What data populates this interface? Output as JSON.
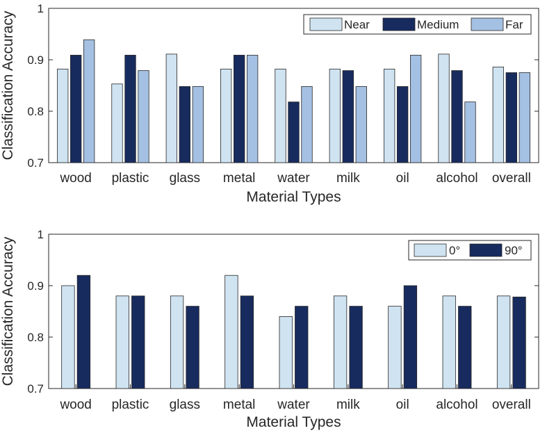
{
  "colors": {
    "near": "#cfe3f1",
    "medium": "#172b5e",
    "far": "#a4c0e2",
    "deg0": "#cfe3f1",
    "deg90": "#172b5e",
    "axis": "#262626",
    "bar_stroke": "#262626"
  },
  "chart_data": [
    {
      "type": "bar",
      "categories": [
        "wood",
        "plastic",
        "glass",
        "metal",
        "water",
        "milk",
        "oil",
        "alcohol",
        "overall"
      ],
      "series": [
        {
          "name": "Near",
          "color_key": "near",
          "values": [
            0.882,
            0.853,
            0.911,
            0.882,
            0.882,
            0.882,
            0.882,
            0.911,
            0.886
          ]
        },
        {
          "name": "Medium",
          "color_key": "medium",
          "values": [
            0.909,
            0.909,
            0.848,
            0.909,
            0.818,
            0.879,
            0.848,
            0.879,
            0.875
          ]
        },
        {
          "name": "Far",
          "color_key": "far",
          "values": [
            0.939,
            0.879,
            0.848,
            0.909,
            0.848,
            0.848,
            0.909,
            0.818,
            0.875
          ]
        }
      ],
      "xlabel": "Material Types",
      "ylabel": "Classification Accuracy",
      "ylim": [
        0.7,
        1
      ],
      "yticks": [
        "0.7",
        "0.8",
        "0.9",
        "1"
      ],
      "grid": false,
      "legend": "top-right, horizontal"
    },
    {
      "type": "bar",
      "categories": [
        "wood",
        "plastic",
        "glass",
        "metal",
        "water",
        "milk",
        "oil",
        "alcohol",
        "overall"
      ],
      "series": [
        {
          "name": "0°",
          "color_key": "deg0",
          "values": [
            0.9,
            0.88,
            0.88,
            0.92,
            0.84,
            0.88,
            0.86,
            0.88,
            0.88
          ]
        },
        {
          "name": "90°",
          "color_key": "deg90",
          "values": [
            0.92,
            0.88,
            0.86,
            0.88,
            0.86,
            0.86,
            0.9,
            0.86,
            0.878
          ]
        }
      ],
      "xlabel": "Material Types",
      "ylabel": "Classification Accuracy",
      "ylim": [
        0.7,
        1
      ],
      "yticks": [
        "0.7",
        "0.8",
        "0.9",
        "1"
      ],
      "grid": false,
      "legend": "top-right, horizontal"
    }
  ]
}
